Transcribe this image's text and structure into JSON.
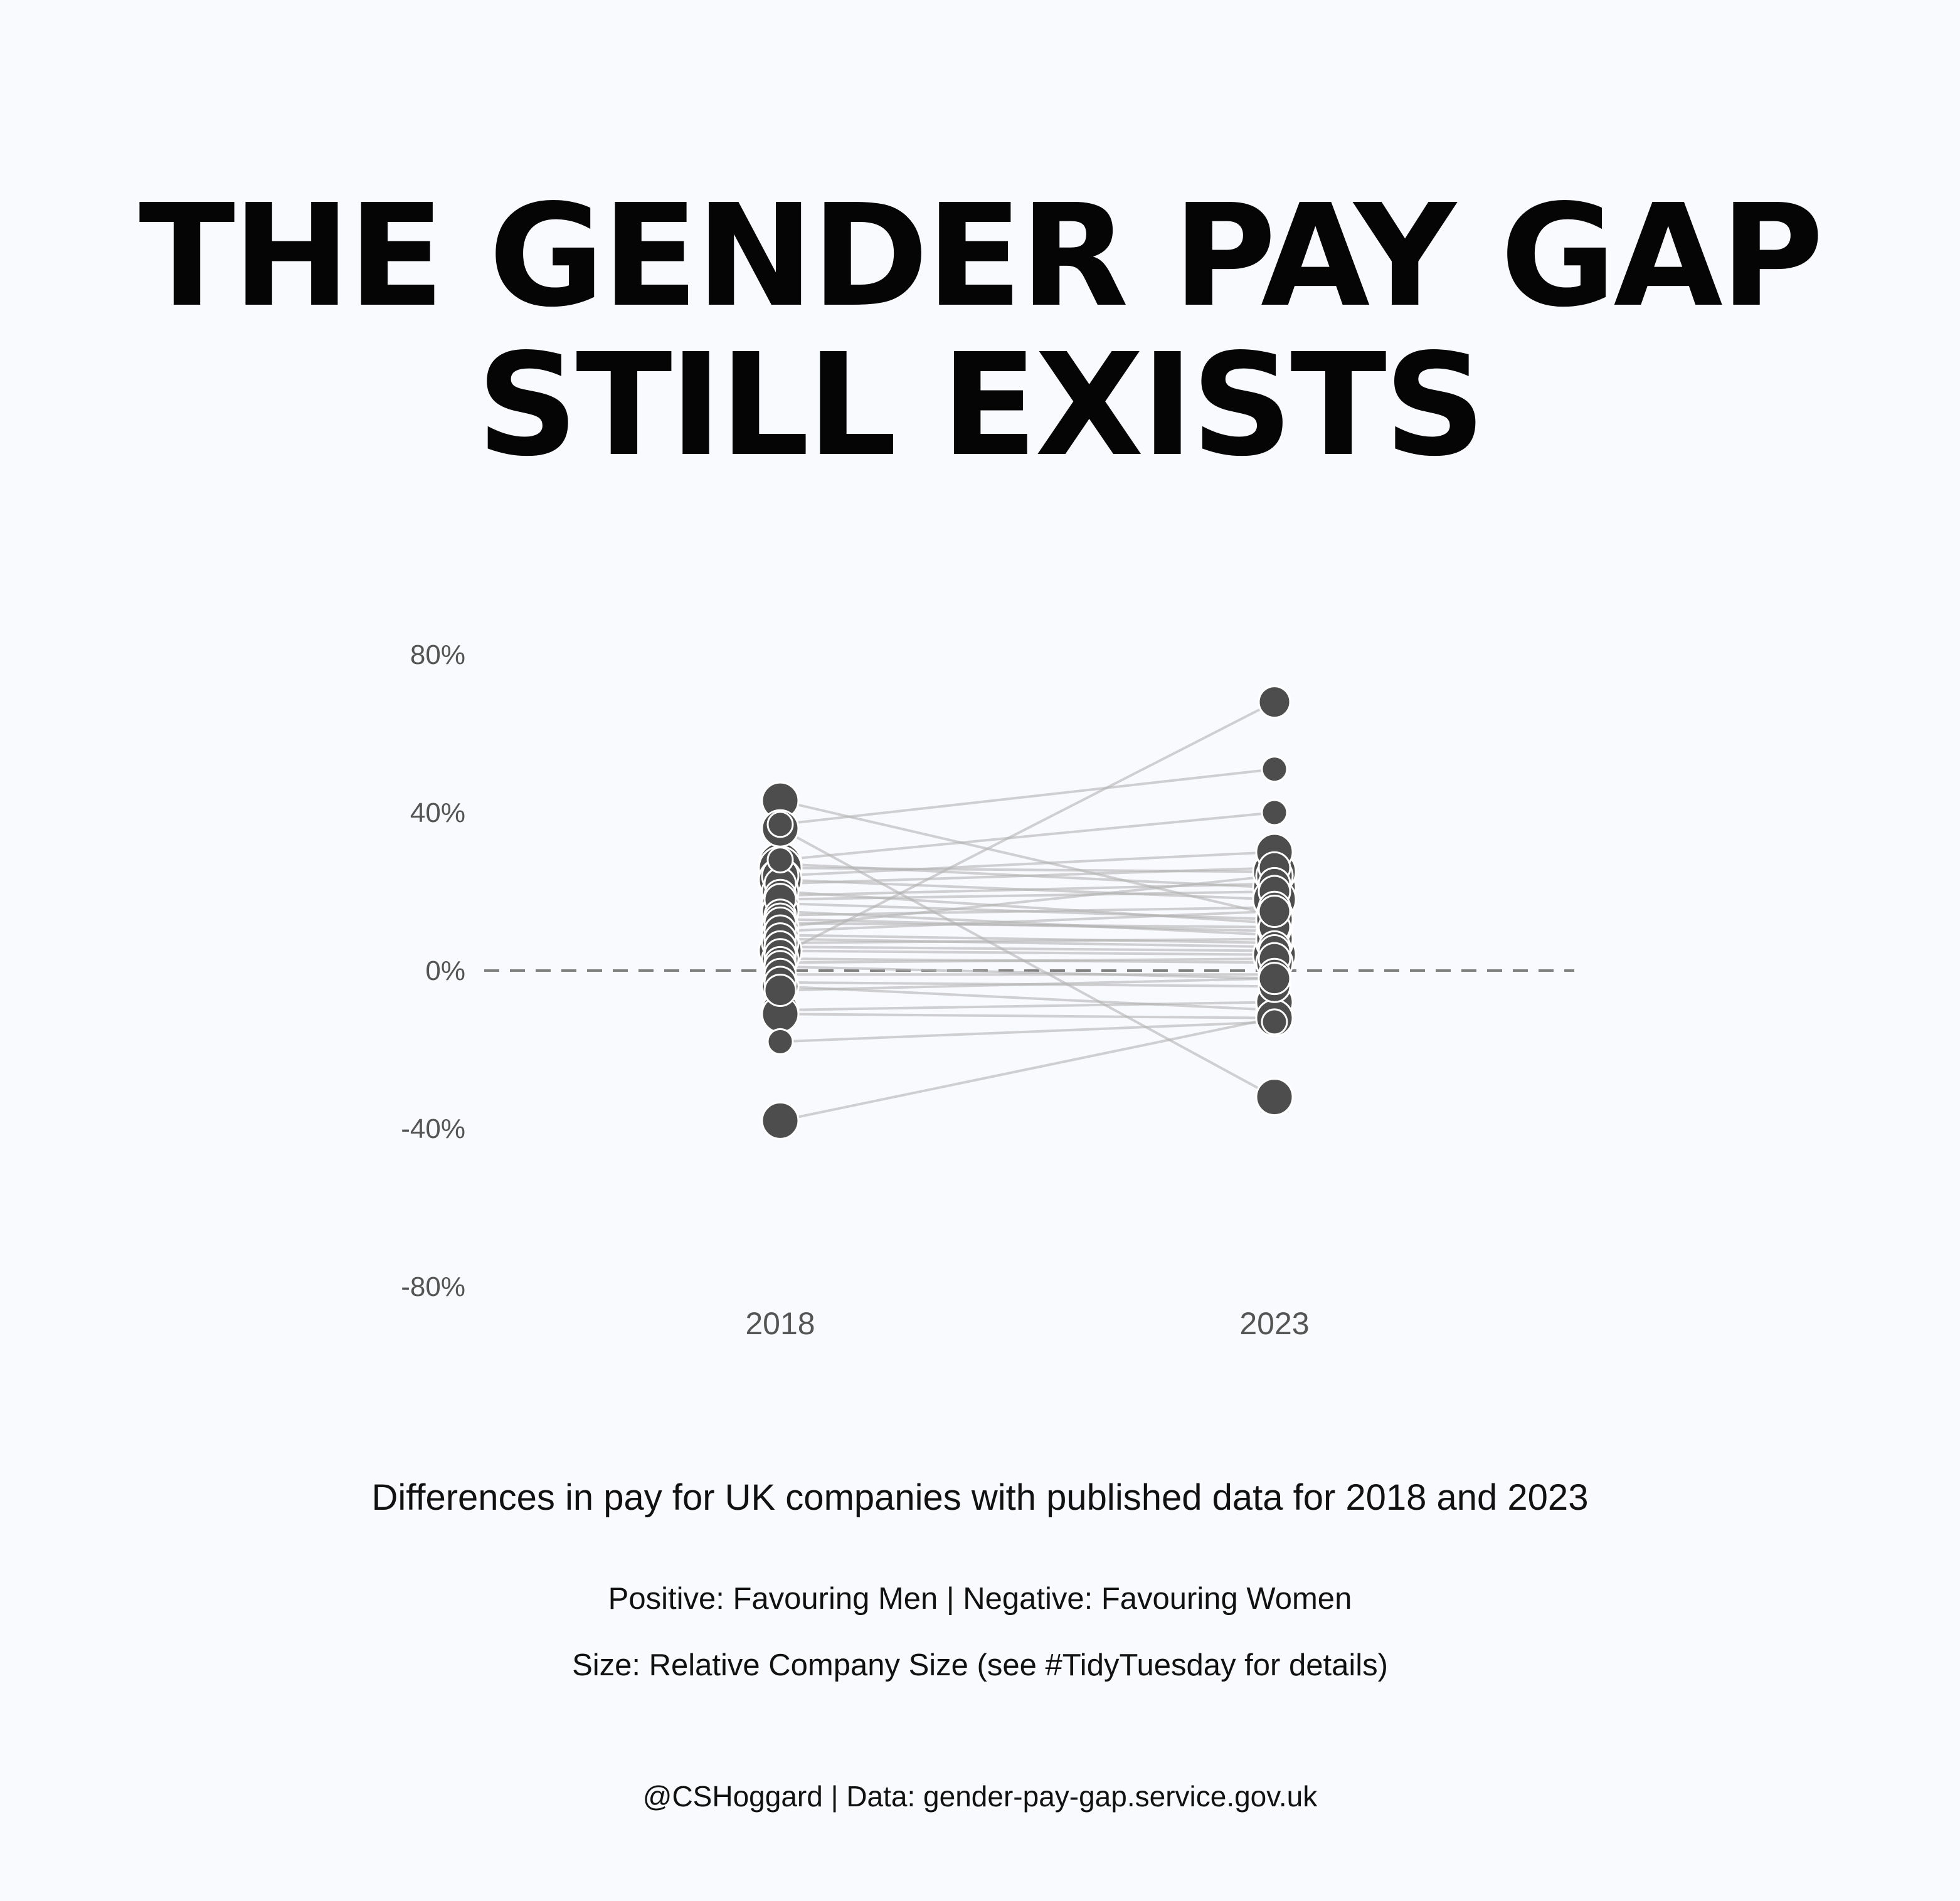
{
  "title_lines": [
    "THE GENDER PAY GAP",
    "STILL EXISTS"
  ],
  "subtitle": "Differences in pay for UK companies with published data for 2018 and 2023",
  "notes": [
    "Positive: Favouring Men | Negative: Favouring Women",
    "Size: Relative Company Size (see #TidyTuesday for details)"
  ],
  "credit": "@CSHoggard | Data: gender-pay-gap.service.gov.uk",
  "colors": {
    "background": "#f9fafe",
    "point": "#4d4d4d",
    "point_stroke": "#ffffff",
    "line": "#b3b3b3",
    "zero_line": "#808080"
  },
  "chart_data": {
    "type": "slope",
    "categories": [
      "2018",
      "2023"
    ],
    "ylim": [
      -80,
      80
    ],
    "y_ticks": [
      80,
      40,
      0,
      -40,
      -80
    ],
    "y_tick_labels": [
      "80%",
      "40%",
      "0%",
      "-40%",
      "-80%"
    ],
    "reference_line": 0,
    "grid": false,
    "size_meaning": "relative company size",
    "companies": [
      {
        "y2018": 43,
        "y2023": 14,
        "size": 3
      },
      {
        "y2018": 36,
        "y2023": -32,
        "size": 3
      },
      {
        "y2018": 37,
        "y2023": 51,
        "size": 1
      },
      {
        "y2018": 28,
        "y2023": 40,
        "size": 1
      },
      {
        "y2018": 27,
        "y2023": 21,
        "size": 4
      },
      {
        "y2018": 26,
        "y2023": 25,
        "size": 4
      },
      {
        "y2018": 24,
        "y2023": 30,
        "size": 3
      },
      {
        "y2018": 23,
        "y2023": 18,
        "size": 4
      },
      {
        "y2018": 22,
        "y2023": 26,
        "size": 2
      },
      {
        "y2018": 20,
        "y2023": 12,
        "size": 3
      },
      {
        "y2018": 19,
        "y2023": 22,
        "size": 2
      },
      {
        "y2018": 18,
        "y2023": 20,
        "size": 2
      },
      {
        "y2018": 17,
        "y2023": 13,
        "size": 3
      },
      {
        "y2018": 15,
        "y2023": 9,
        "size": 3
      },
      {
        "y2018": 14,
        "y2023": 16,
        "size": 2
      },
      {
        "y2018": 13,
        "y2023": 10,
        "size": 2
      },
      {
        "y2018": 12,
        "y2023": 11,
        "size": 2
      },
      {
        "y2018": 11,
        "y2023": 24,
        "size": 3
      },
      {
        "y2018": 10,
        "y2023": 15,
        "size": 2
      },
      {
        "y2018": 9,
        "y2023": 7,
        "size": 3
      },
      {
        "y2018": 8,
        "y2023": 6,
        "size": 2
      },
      {
        "y2018": 7,
        "y2023": 8,
        "size": 3
      },
      {
        "y2018": 6,
        "y2023": 5,
        "size": 2
      },
      {
        "y2018": 5,
        "y2023": 4,
        "size": 4
      },
      {
        "y2018": 4,
        "y2023": 68,
        "size": 2
      },
      {
        "y2018": 3,
        "y2023": 2,
        "size": 3
      },
      {
        "y2018": 2,
        "y2023": 3,
        "size": 2
      },
      {
        "y2018": 1,
        "y2023": -2,
        "size": 2
      },
      {
        "y2018": -1,
        "y2023": -1,
        "size": 2
      },
      {
        "y2018": -3,
        "y2023": -4,
        "size": 2
      },
      {
        "y2018": -4,
        "y2023": -10,
        "size": 3
      },
      {
        "y2018": -5,
        "y2023": -2,
        "size": 2
      },
      {
        "y2018": -10,
        "y2023": -8,
        "size": 3
      },
      {
        "y2018": -11,
        "y2023": -12,
        "size": 3
      },
      {
        "y2018": -18,
        "y2023": -13,
        "size": 1
      },
      {
        "y2018": -38,
        "y2023": -12,
        "size": 3
      }
    ]
  }
}
